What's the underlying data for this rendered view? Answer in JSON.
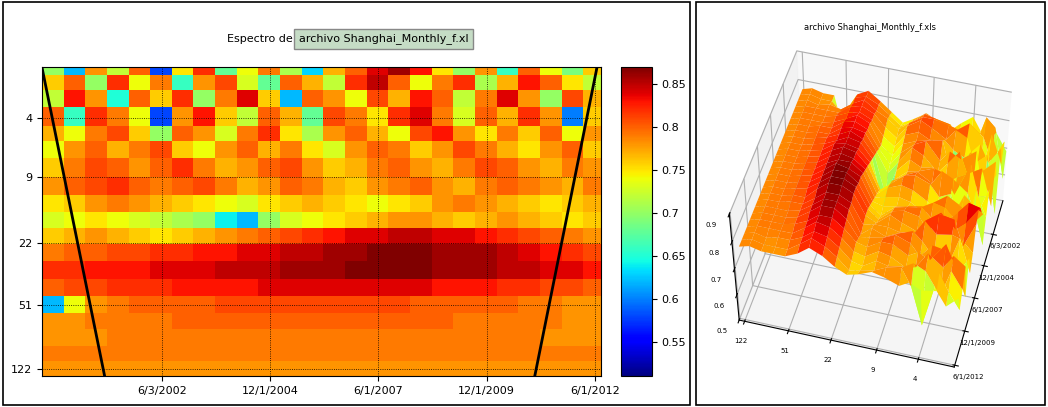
{
  "header": {
    "label": "Espectro de:",
    "file": "archivo Shanghai_Monthly_f.xl"
  },
  "data": {
    "x": [
      1999.9,
      2000.4,
      2000.9,
      2001.4,
      2001.9,
      2002.4,
      2002.9,
      2003.4,
      2003.9,
      2004.4,
      2004.9,
      2005.4,
      2005.9,
      2006.4,
      2006.9,
      2007.4,
      2007.9,
      2008.4,
      2008.9,
      2009.4,
      2009.9,
      2010.4,
      2010.9,
      2011.4,
      2011.9,
      2012.4
    ],
    "y": [
      2,
      2.5,
      3,
      4,
      5,
      6,
      8,
      10,
      13,
      16,
      20,
      25,
      32,
      40,
      51,
      64,
      80,
      100,
      122
    ],
    "cells": [
      [
        0.7,
        0.62,
        0.78,
        0.72,
        0.8,
        0.58,
        0.75,
        0.82,
        0.68,
        0.74,
        0.79,
        0.71,
        0.63,
        0.77,
        0.8,
        0.84,
        0.86,
        0.83,
        0.75,
        0.7,
        0.78,
        0.66,
        0.8,
        0.74,
        0.69,
        0.76
      ],
      [
        0.76,
        0.8,
        0.7,
        0.82,
        0.74,
        0.79,
        0.66,
        0.78,
        0.81,
        0.73,
        0.68,
        0.8,
        0.77,
        0.72,
        0.82,
        0.85,
        0.8,
        0.74,
        0.79,
        0.82,
        0.71,
        0.77,
        0.83,
        0.8,
        0.75,
        0.72
      ],
      [
        0.72,
        0.83,
        0.78,
        0.65,
        0.8,
        0.76,
        0.82,
        0.7,
        0.79,
        0.84,
        0.76,
        0.62,
        0.8,
        0.78,
        0.74,
        0.81,
        0.77,
        0.83,
        0.8,
        0.72,
        0.79,
        0.84,
        0.78,
        0.7,
        0.81,
        0.77
      ],
      [
        0.8,
        0.66,
        0.82,
        0.79,
        0.74,
        0.58,
        0.78,
        0.83,
        0.76,
        0.72,
        0.8,
        0.77,
        0.68,
        0.81,
        0.79,
        0.75,
        0.82,
        0.84,
        0.79,
        0.73,
        0.8,
        0.77,
        0.82,
        0.78,
        0.6,
        0.76
      ],
      [
        0.77,
        0.74,
        0.79,
        0.81,
        0.76,
        0.7,
        0.8,
        0.78,
        0.73,
        0.79,
        0.82,
        0.75,
        0.71,
        0.78,
        0.8,
        0.77,
        0.74,
        0.81,
        0.83,
        0.78,
        0.75,
        0.79,
        0.76,
        0.8,
        0.74,
        0.78
      ],
      [
        0.74,
        0.78,
        0.8,
        0.77,
        0.79,
        0.81,
        0.76,
        0.74,
        0.78,
        0.8,
        0.77,
        0.79,
        0.75,
        0.73,
        0.78,
        0.8,
        0.79,
        0.76,
        0.78,
        0.81,
        0.79,
        0.77,
        0.75,
        0.78,
        0.8,
        0.76
      ],
      [
        0.76,
        0.79,
        0.81,
        0.8,
        0.78,
        0.8,
        0.82,
        0.79,
        0.77,
        0.78,
        0.8,
        0.81,
        0.78,
        0.76,
        0.77,
        0.79,
        0.8,
        0.78,
        0.77,
        0.79,
        0.81,
        0.8,
        0.78,
        0.77,
        0.79,
        0.78
      ],
      [
        0.78,
        0.8,
        0.81,
        0.82,
        0.8,
        0.79,
        0.8,
        0.81,
        0.79,
        0.77,
        0.78,
        0.8,
        0.79,
        0.77,
        0.76,
        0.78,
        0.79,
        0.8,
        0.78,
        0.77,
        0.79,
        0.8,
        0.79,
        0.78,
        0.77,
        0.79
      ],
      [
        0.75,
        0.76,
        0.78,
        0.79,
        0.78,
        0.77,
        0.76,
        0.75,
        0.74,
        0.73,
        0.75,
        0.76,
        0.77,
        0.76,
        0.75,
        0.74,
        0.75,
        0.76,
        0.78,
        0.79,
        0.78,
        0.77,
        0.76,
        0.75,
        0.76,
        0.77
      ],
      [
        0.73,
        0.74,
        0.75,
        0.74,
        0.73,
        0.72,
        0.71,
        0.7,
        0.64,
        0.62,
        0.7,
        0.73,
        0.74,
        0.75,
        0.76,
        0.77,
        0.78,
        0.78,
        0.77,
        0.76,
        0.77,
        0.78,
        0.77,
        0.76,
        0.75,
        0.76
      ],
      [
        0.76,
        0.77,
        0.78,
        0.77,
        0.76,
        0.75,
        0.76,
        0.77,
        0.78,
        0.79,
        0.8,
        0.81,
        0.82,
        0.83,
        0.84,
        0.84,
        0.85,
        0.85,
        0.84,
        0.84,
        0.83,
        0.82,
        0.81,
        0.8,
        0.79,
        0.78
      ],
      [
        0.79,
        0.8,
        0.8,
        0.81,
        0.81,
        0.82,
        0.82,
        0.83,
        0.83,
        0.84,
        0.84,
        0.85,
        0.85,
        0.86,
        0.86,
        0.87,
        0.87,
        0.87,
        0.86,
        0.86,
        0.86,
        0.85,
        0.84,
        0.83,
        0.82,
        0.81
      ],
      [
        0.82,
        0.82,
        0.83,
        0.83,
        0.83,
        0.84,
        0.84,
        0.84,
        0.85,
        0.85,
        0.85,
        0.86,
        0.86,
        0.86,
        0.87,
        0.87,
        0.87,
        0.87,
        0.86,
        0.86,
        0.86,
        0.85,
        0.85,
        0.84,
        0.84,
        0.83
      ],
      [
        0.8,
        0.81,
        0.81,
        0.82,
        0.82,
        0.82,
        0.83,
        0.83,
        0.83,
        0.83,
        0.84,
        0.84,
        0.84,
        0.84,
        0.84,
        0.84,
        0.84,
        0.84,
        0.83,
        0.83,
        0.83,
        0.82,
        0.82,
        0.81,
        0.81,
        0.8
      ],
      [
        0.62,
        0.74,
        0.78,
        0.79,
        0.8,
        0.8,
        0.8,
        0.8,
        0.81,
        0.81,
        0.81,
        0.81,
        0.81,
        0.81,
        0.81,
        0.81,
        0.81,
        0.8,
        0.8,
        0.8,
        0.8,
        0.8,
        0.79,
        0.79,
        0.78,
        0.78
      ],
      [
        0.78,
        0.78,
        0.79,
        0.79,
        0.79,
        0.79,
        0.8,
        0.8,
        0.8,
        0.8,
        0.8,
        0.8,
        0.8,
        0.8,
        0.8,
        0.8,
        0.8,
        0.8,
        0.8,
        0.79,
        0.79,
        0.79,
        0.79,
        0.79,
        0.78,
        0.78
      ],
      [
        0.78,
        0.78,
        0.78,
        0.79,
        0.79,
        0.79,
        0.79,
        0.79,
        0.79,
        0.79,
        0.79,
        0.79,
        0.79,
        0.79,
        0.79,
        0.79,
        0.79,
        0.79,
        0.79,
        0.79,
        0.79,
        0.79,
        0.79,
        0.78,
        0.78,
        0.78
      ],
      [
        0.79,
        0.79,
        0.79,
        0.79,
        0.79,
        0.79,
        0.79,
        0.79,
        0.79,
        0.79,
        0.79,
        0.79,
        0.79,
        0.79,
        0.79,
        0.79,
        0.79,
        0.79,
        0.79,
        0.79,
        0.79,
        0.79,
        0.79,
        0.79,
        0.79,
        0.79
      ],
      [
        0.78,
        0.78,
        0.78,
        0.78,
        0.78,
        0.78,
        0.78,
        0.78,
        0.78,
        0.78,
        0.78,
        0.78,
        0.78,
        0.78,
        0.78,
        0.78,
        0.78,
        0.78,
        0.78,
        0.78,
        0.78,
        0.78,
        0.78,
        0.78,
        0.78,
        0.78
      ]
    ]
  },
  "chart_data": [
    {
      "type": "heatmap",
      "log": "y",
      "grid": true,
      "xlim": [
        1999.65,
        2012.55
      ],
      "xticks": [
        {
          "value": 2002.42,
          "label": "6/3/2002"
        },
        {
          "value": 2004.92,
          "label": "12/1/2004"
        },
        {
          "value": 2007.42,
          "label": "6/1/2007"
        },
        {
          "value": 2009.92,
          "label": "12/1/2009"
        },
        {
          "value": 2012.42,
          "label": "6/1/2012"
        }
      ],
      "ylim": [
        136,
        2
      ],
      "yticks": [
        4,
        9,
        22,
        51,
        122
      ],
      "color_range": [
        0.51,
        0.87
      ],
      "color_ticks": [
        0.55,
        0.6,
        0.65,
        0.7,
        0.75,
        0.8,
        0.85
      ],
      "coi": [
        {
          "x": [
            1999.65,
            2001.1
          ],
          "y": [
            2,
            136
          ]
        },
        {
          "x": [
            2012.47,
            2011.03
          ],
          "y": [
            2,
            136
          ]
        }
      ]
    },
    {
      "type": "surface",
      "title": "archivo Shanghai_Monthly_f.xls",
      "xlim": [
        1999.65,
        2012.55
      ],
      "xticks": [
        {
          "value": 2002.42,
          "label": "6/3/2002"
        },
        {
          "value": 2004.92,
          "label": "12/1/2004"
        },
        {
          "value": 2007.42,
          "label": "6/1/2007"
        },
        {
          "value": 2009.92,
          "label": "12/1/2009"
        },
        {
          "value": 2012.42,
          "label": "6/1/2012"
        }
      ],
      "ylim": [
        136,
        2
      ],
      "yticks": [
        122,
        51,
        22,
        9,
        4
      ],
      "zlim": [
        0.5,
        0.9
      ],
      "zticks": [
        0.5,
        0.6,
        0.7,
        0.8,
        0.9
      ]
    }
  ]
}
